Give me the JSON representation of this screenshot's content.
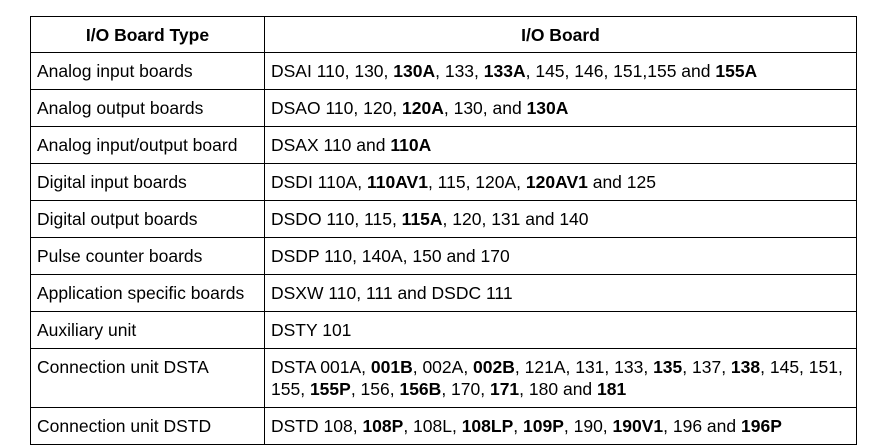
{
  "table": {
    "headers": [
      "I/O Board Type",
      "I/O Board"
    ],
    "rows": [
      {
        "type": "Analog input boards",
        "parts": [
          {
            "t": "DSAI 110, 130, ",
            "b": false
          },
          {
            "t": "130A",
            "b": true
          },
          {
            "t": ", 133, ",
            "b": false
          },
          {
            "t": "133A",
            "b": true
          },
          {
            "t": ", 145, 146, 151,155 and ",
            "b": false
          },
          {
            "t": "155A",
            "b": true
          }
        ]
      },
      {
        "type": "Analog output boards",
        "parts": [
          {
            "t": "DSAO 110, 120, ",
            "b": false
          },
          {
            "t": "120A",
            "b": true
          },
          {
            "t": ", 130, and ",
            "b": false
          },
          {
            "t": "130A",
            "b": true
          }
        ]
      },
      {
        "type": "Analog input/output board",
        "parts": [
          {
            "t": "DSAX 110 and ",
            "b": false
          },
          {
            "t": "110A",
            "b": true
          }
        ]
      },
      {
        "type": "Digital input boards",
        "parts": [
          {
            "t": "DSDI 110A, ",
            "b": false
          },
          {
            "t": "110AV1",
            "b": true
          },
          {
            "t": ", 115, 120A, ",
            "b": false
          },
          {
            "t": "120AV1",
            "b": true
          },
          {
            "t": " and 125",
            "b": false
          }
        ]
      },
      {
        "type": "Digital output boards",
        "parts": [
          {
            "t": "DSDO 110, 115, ",
            "b": false
          },
          {
            "t": "115A",
            "b": true
          },
          {
            "t": ", 120, 131 and 140",
            "b": false
          }
        ]
      },
      {
        "type": "Pulse counter boards",
        "parts": [
          {
            "t": "DSDP 110, 140A, 150 and 170",
            "b": false
          }
        ]
      },
      {
        "type": "Application specific boards",
        "parts": [
          {
            "t": "DSXW 110, 111 and DSDC 111",
            "b": false
          }
        ]
      },
      {
        "type": "Auxiliary unit",
        "parts": [
          {
            "t": "DSTY 101",
            "b": false
          }
        ]
      },
      {
        "type": "Connection unit DSTA",
        "tall": true,
        "parts": [
          {
            "t": "DSTA 001A, ",
            "b": false
          },
          {
            "t": "001B",
            "b": true
          },
          {
            "t": ", 002A, ",
            "b": false
          },
          {
            "t": "002B",
            "b": true
          },
          {
            "t": ", 121A, 131, 133, ",
            "b": false
          },
          {
            "t": "135",
            "b": true
          },
          {
            "t": ", 137, ",
            "b": false
          },
          {
            "t": "138",
            "b": true
          },
          {
            "t": ", 145, 151, 155, ",
            "b": false
          },
          {
            "t": "155P",
            "b": true
          },
          {
            "t": ", 156, ",
            "b": false
          },
          {
            "t": "156B",
            "b": true
          },
          {
            "t": ", 170, ",
            "b": false
          },
          {
            "t": "171",
            "b": true
          },
          {
            "t": ", 180 and ",
            "b": false
          },
          {
            "t": "181",
            "b": true
          }
        ]
      },
      {
        "type": "Connection unit DSTD",
        "parts": [
          {
            "t": "DSTD 108, ",
            "b": false
          },
          {
            "t": "108P",
            "b": true
          },
          {
            "t": ", 108L, ",
            "b": false
          },
          {
            "t": "108LP",
            "b": true
          },
          {
            "t": ", ",
            "b": false
          },
          {
            "t": "109P",
            "b": true
          },
          {
            "t": ", 190, ",
            "b": false
          },
          {
            "t": "190V1",
            "b": true
          },
          {
            "t": ", 196 and ",
            "b": false
          },
          {
            "t": "196P",
            "b": true
          }
        ]
      }
    ]
  }
}
